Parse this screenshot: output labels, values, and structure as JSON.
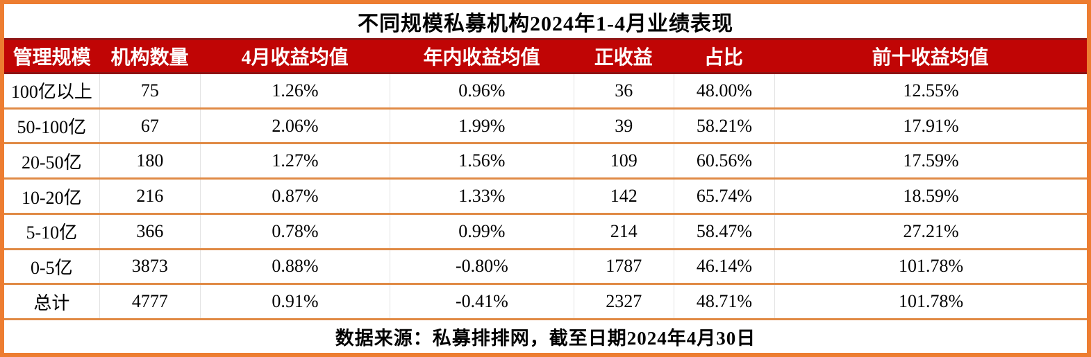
{
  "chart_data": {
    "type": "table",
    "title": "不同规模私募机构2024年1-4月业绩表现",
    "columns": [
      "管理规模",
      "机构数量",
      "4月收益均值",
      "年内收益均值",
      "正收益",
      "占比",
      "前十收益均值"
    ],
    "rows": [
      [
        "100亿以上",
        "75",
        "1.26%",
        "0.96%",
        "36",
        "48.00%",
        "12.55%"
      ],
      [
        "50-100亿",
        "67",
        "2.06%",
        "1.99%",
        "39",
        "58.21%",
        "17.91%"
      ],
      [
        "20-50亿",
        "180",
        "1.27%",
        "1.56%",
        "109",
        "60.56%",
        "17.59%"
      ],
      [
        "10-20亿",
        "216",
        "0.87%",
        "1.33%",
        "142",
        "65.74%",
        "18.59%"
      ],
      [
        "5-10亿",
        "366",
        "0.78%",
        "0.99%",
        "214",
        "58.47%",
        "27.21%"
      ],
      [
        "0-5亿",
        "3873",
        "0.88%",
        "-0.80%",
        "1787",
        "46.14%",
        "101.78%"
      ],
      [
        "总计",
        "4777",
        "0.91%",
        "-0.41%",
        "2327",
        "48.71%",
        "101.78%"
      ]
    ],
    "footnote": "数据来源：私募排排网，截至日期2024年4月30日",
    "layout": {
      "grid": "horizontal orange row dividers, light gray column dividers",
      "header_position": "top"
    }
  },
  "colors": {
    "outer_border": "#ED7D31",
    "row_divider": "#E08A45",
    "column_divider": "#E3E3E3",
    "header_background": "#C00505",
    "header_edge_line": "#8E1414",
    "header_text": "#FFFFFF",
    "body_text": "#000000"
  }
}
